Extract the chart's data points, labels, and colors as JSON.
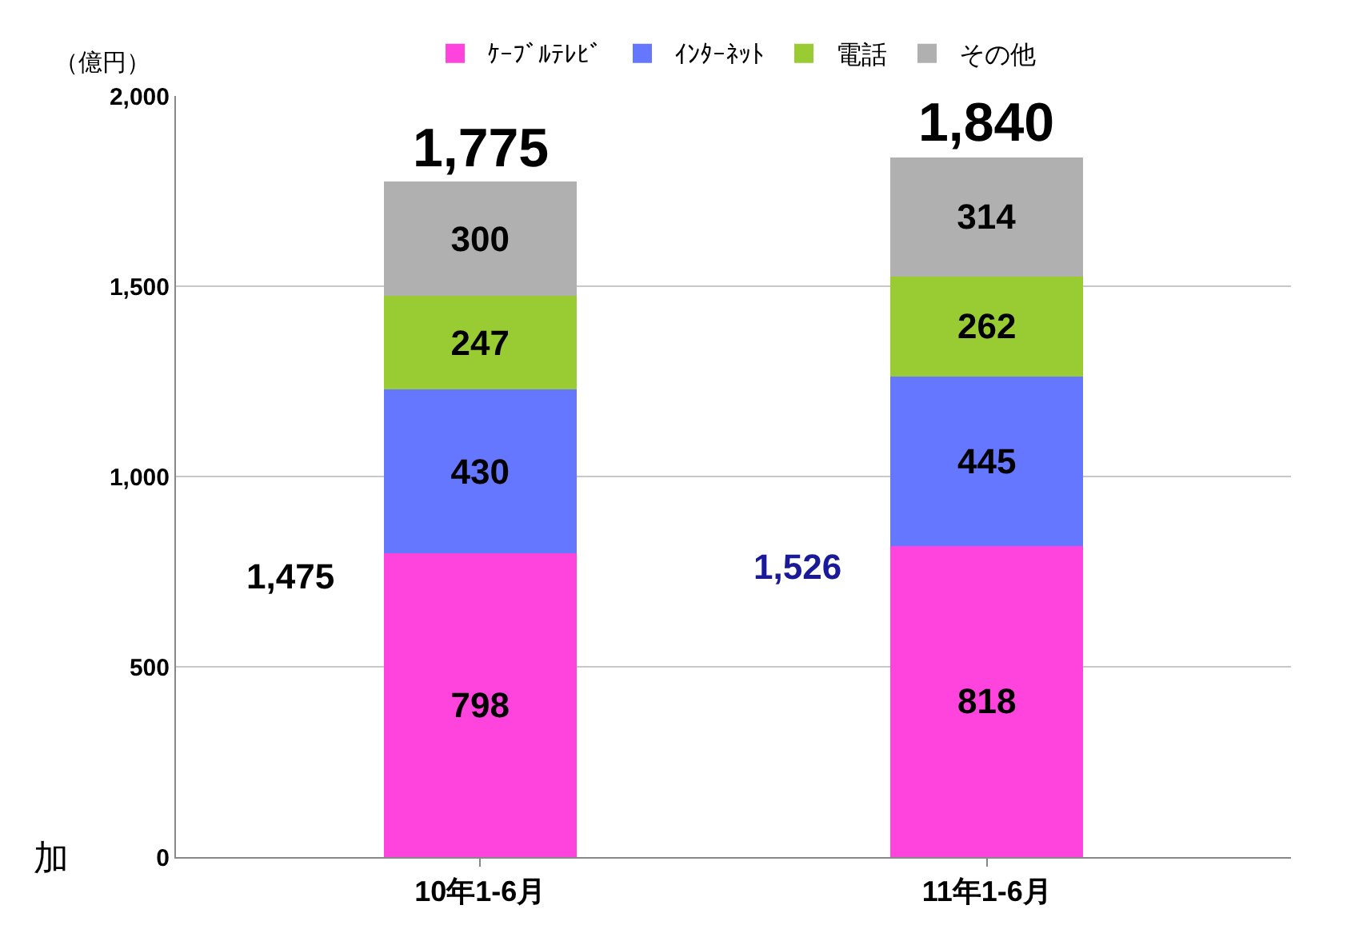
{
  "chart_data": {
    "type": "bar",
    "stacked": true,
    "ylabel": "（億円）",
    "categories": [
      "10年1-6月",
      "11年1-6月"
    ],
    "series": [
      {
        "name": "ｹｰﾌﾞﾙﾃﾚﾋﾞ",
        "color": "#ff44dd",
        "values": [
          798,
          818
        ]
      },
      {
        "name": "ｲﾝﾀｰﾈｯﾄ",
        "color": "#6677ff",
        "values": [
          430,
          445
        ]
      },
      {
        "name": "電話",
        "color": "#99cc33",
        "values": [
          247,
          262
        ]
      },
      {
        "name": "その他",
        "color": "#b0b0b0",
        "values": [
          300,
          314
        ]
      }
    ],
    "totals": [
      "1,775",
      "1,840"
    ],
    "annotations": [
      "1,475",
      "1,526",
      "加"
    ],
    "ylim": [
      0,
      2000
    ],
    "yticks": [
      0,
      500,
      {
        "value": 1000,
        "label": "1,000"
      },
      {
        "value": 1500,
        "label": "1,500"
      },
      {
        "value": 2000,
        "label": "2,000"
      }
    ],
    "grid": "y",
    "legend": "top",
    "data_labels": true
  }
}
